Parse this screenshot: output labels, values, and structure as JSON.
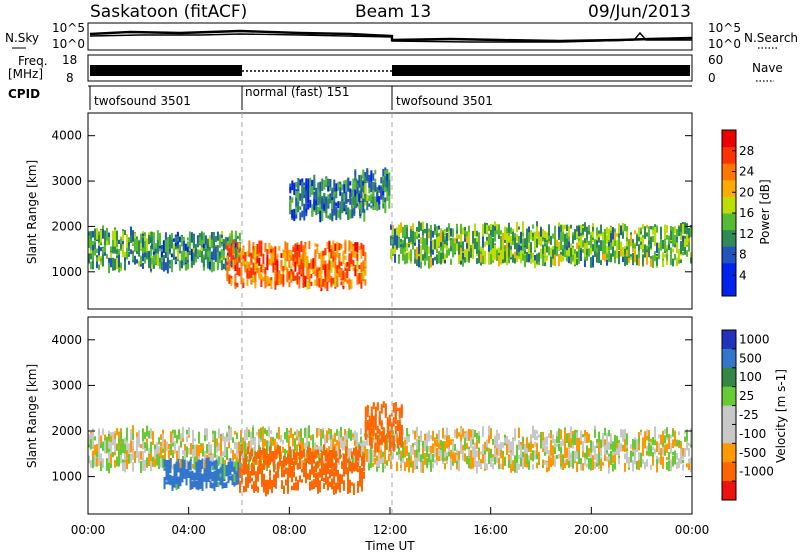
{
  "header": {
    "station": "Saskatoon (fitACF)",
    "beam": "Beam 13",
    "date": "09/Jun/2013"
  },
  "noise_panel": {
    "left_label": "N.Sky",
    "right_label": "N.Search",
    "left_ticks": [
      "10^5",
      "10^0"
    ],
    "right_ticks": [
      "10^5",
      "10^0"
    ]
  },
  "freq_panel": {
    "left_label_1": "Freq.",
    "left_label_2": "[MHz]",
    "left_ticks": [
      "18",
      "8"
    ],
    "right_label": "Nave",
    "right_ticks": [
      "60",
      "0"
    ]
  },
  "cpid": {
    "label": "CPID",
    "segments": [
      {
        "name": "twofsound 3501",
        "start_hour": 0,
        "end_hour": 6
      },
      {
        "name": "normal (fast) 151",
        "start_hour": 6,
        "end_hour": 12
      },
      {
        "name": "twofsound 3501",
        "start_hour": 12,
        "end_hour": 24
      }
    ]
  },
  "colors": {
    "power": [
      "#0022ee",
      "#2255bb",
      "#2e8b57",
      "#55bb33",
      "#bbdd00",
      "#ffaa00",
      "#ff7700",
      "#ff3300",
      "#ee0000"
    ],
    "velocity": [
      "#2233bb",
      "#3377cc",
      "#338844",
      "#66cc33",
      "#c8c8c8",
      "#c8c8c8",
      "#ff9900",
      "#ff6600",
      "#ee1111"
    ]
  },
  "chart_data": [
    {
      "type": "heatmap",
      "variable": "power",
      "ylabel": "Slant Range [km]",
      "xlabel": "",
      "ylim": [
        180,
        4500
      ],
      "xlim": [
        0,
        24
      ],
      "y_ticks": [
        1000,
        2000,
        3000,
        4000
      ],
      "colorbar_label": "Power [dB]",
      "colorbar_range": [
        0,
        32
      ],
      "colorbar_ticks": [
        "4",
        "8",
        "12",
        "16",
        "20",
        "24",
        "28"
      ],
      "bands": [
        {
          "t": [
            0,
            2.5
          ],
          "r": [
            1100,
            1900
          ],
          "level": 12
        },
        {
          "t": [
            2.5,
            6
          ],
          "r": [
            1100,
            1800
          ],
          "level": 10
        },
        {
          "t": [
            5.5,
            11
          ],
          "r": [
            700,
            1600
          ],
          "level": 26
        },
        {
          "t": [
            8,
            11
          ],
          "r": [
            2200,
            3000
          ],
          "level": 8
        },
        {
          "t": [
            10.5,
            12
          ],
          "r": [
            2400,
            3200
          ],
          "level": 10
        },
        {
          "t": [
            12,
            24
          ],
          "r": [
            1200,
            2000
          ],
          "level": 14
        }
      ]
    },
    {
      "type": "heatmap",
      "variable": "velocity",
      "ylabel": "Slant Range [km]",
      "xlabel": "Time UT",
      "ylim": [
        180,
        4500
      ],
      "xlim": [
        0,
        24
      ],
      "y_ticks": [
        1000,
        2000,
        3000,
        4000
      ],
      "x_ticks": [
        "00:00",
        "04:00",
        "08:00",
        "12:00",
        "16:00",
        "20:00",
        "00:00"
      ],
      "colorbar_label": "Velocity [m s-1]",
      "colorbar_ticks": [
        "1000",
        "500",
        "100",
        "25",
        "-25",
        "-100",
        "-500",
        "-1000"
      ],
      "bands": [
        {
          "t": [
            0,
            24
          ],
          "r": [
            1200,
            2000
          ],
          "velocity": 0
        },
        {
          "t": [
            3,
            6
          ],
          "r": [
            800,
            1300
          ],
          "velocity": 150
        },
        {
          "t": [
            6,
            11
          ],
          "r": [
            700,
            1600
          ],
          "velocity": -300
        },
        {
          "t": [
            11,
            12.5
          ],
          "r": [
            1600,
            2600
          ],
          "velocity": -300
        }
      ]
    }
  ]
}
